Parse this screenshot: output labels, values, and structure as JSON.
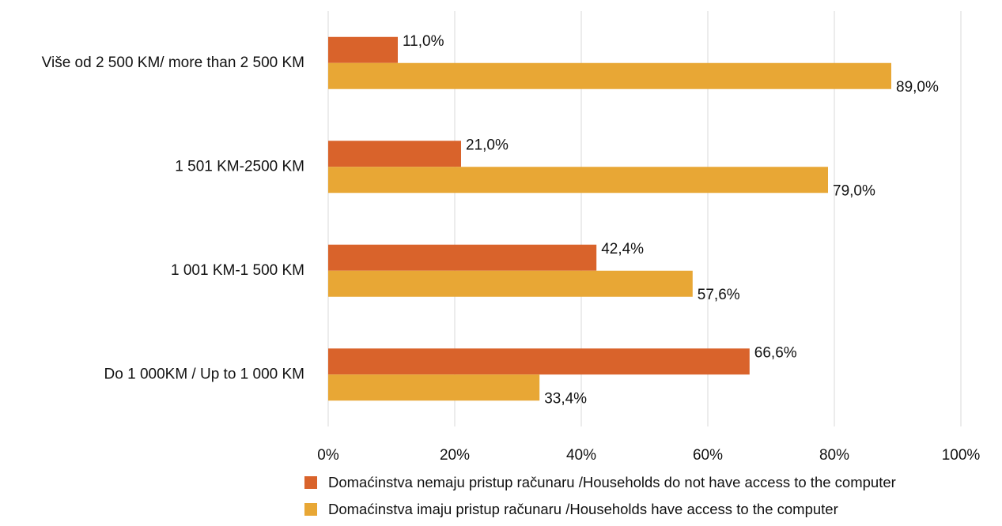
{
  "chart_data": {
    "type": "bar",
    "orientation": "horizontal",
    "categories": [
      "Više od 2 500 KM/ more than 2 500 KM",
      "1 501 KM-2500 KM",
      "1 001 KM-1 500 KM",
      "Do 1 000KM / Up to 1 000 KM"
    ],
    "series": [
      {
        "name": "Domaćinstva nemaju pristup računaru /Households do not have access to the computer",
        "color": "#d9632b",
        "values": [
          11.0,
          21.0,
          42.4,
          66.6
        ],
        "value_labels": [
          "11,0%",
          "21,0%",
          "42,4%",
          "66,6%"
        ]
      },
      {
        "name": "Domaćinstva imaju pristup računaru /Households have access to the computer",
        "color": "#e8a735",
        "values": [
          89.0,
          79.0,
          57.6,
          33.4
        ],
        "value_labels": [
          "89,0%",
          "79,0%",
          "57,6%",
          "33,4%"
        ]
      }
    ],
    "xlim": [
      0,
      100
    ],
    "xticks": [
      {
        "value": 0,
        "label": "0%"
      },
      {
        "value": 20,
        "label": "20%"
      },
      {
        "value": 40,
        "label": "40%"
      },
      {
        "value": 60,
        "label": "60%"
      },
      {
        "value": 80,
        "label": "80%"
      },
      {
        "value": 100,
        "label": "100%"
      }
    ],
    "grid": true,
    "legend": "bottom"
  }
}
